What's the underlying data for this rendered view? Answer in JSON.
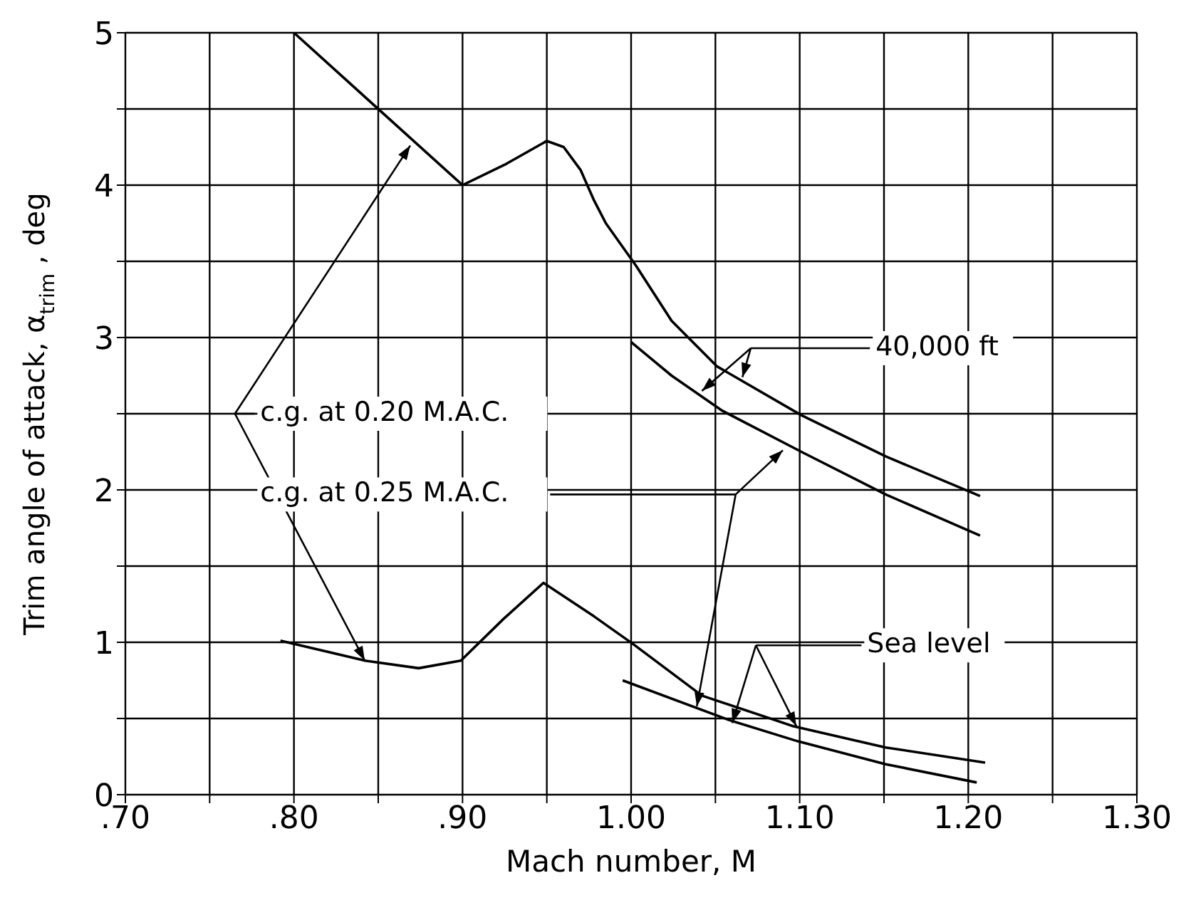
{
  "chart_data": {
    "type": "line",
    "xlabel": "Mach number, M",
    "ylabel": "Trim angle of attack, α$_{trim}$, deg",
    "xlim": [
      0.7,
      1.3
    ],
    "xticks": [
      {
        "value": 0.7,
        "label": ".70"
      },
      {
        "value": 0.75,
        "label": null
      },
      {
        "value": 0.8,
        "label": ".80"
      },
      {
        "value": 0.85,
        "label": null
      },
      {
        "value": 0.9,
        "label": ".90"
      },
      {
        "value": 0.95,
        "label": null
      },
      {
        "value": 1.0,
        "label": "1.00"
      },
      {
        "value": 1.05,
        "label": null
      },
      {
        "value": 1.1,
        "label": "1.10"
      },
      {
        "value": 1.15,
        "label": null
      },
      {
        "value": 1.2,
        "label": "1.20"
      },
      {
        "value": 1.25,
        "label": null
      },
      {
        "value": 1.3,
        "label": "1.30"
      }
    ],
    "ylim": [
      0,
      5
    ],
    "yticks": [
      0,
      {
        "value": 0.5,
        "label": null
      },
      1,
      {
        "value": 1.5,
        "label": null
      },
      2,
      {
        "value": 2.5,
        "label": null
      },
      3,
      {
        "value": 3.5,
        "label": null
      },
      4,
      {
        "value": 4.5,
        "label": null
      },
      5
    ],
    "grid": true,
    "legend": false,
    "marker": "none",
    "line_style": "solid",
    "series": [
      {
        "color": "#000000",
        "x": [
          0.8,
          0.9,
          0.926,
          0.95,
          0.96,
          0.97,
          0.978,
          0.985,
          1.003,
          1.024,
          1.051,
          1.101,
          1.151,
          1.207
        ],
        "values": [
          5.0,
          4.0,
          4.14,
          4.29,
          4.25,
          4.1,
          3.9,
          3.75,
          3.47,
          3.11,
          2.81,
          2.49,
          2.22,
          1.96
        ]
      },
      {
        "color": "#000000",
        "x": [
          1.0,
          1.024,
          1.054,
          1.101,
          1.151,
          1.207
        ],
        "values": [
          2.97,
          2.75,
          2.52,
          2.25,
          1.97,
          1.7
        ]
      },
      {
        "color": "#000000",
        "x": [
          0.792,
          0.842,
          0.874,
          0.899,
          0.924,
          0.948,
          0.978,
          1.001,
          1.042,
          1.096,
          1.151,
          1.21
        ],
        "values": [
          1.01,
          0.88,
          0.83,
          0.88,
          1.15,
          1.39,
          1.17,
          0.99,
          0.65,
          0.45,
          0.31,
          0.21
        ]
      },
      {
        "color": "#000000",
        "x": [
          0.995,
          1.058,
          1.099,
          1.151,
          1.205
        ],
        "values": [
          0.75,
          0.49,
          0.35,
          0.2,
          0.08
        ]
      }
    ],
    "annotations": [
      {
        "text": "c.g. at 0.20 M.A.C.",
        "x": 0.869,
        "y": 4.26
      },
      "c.g. at 0.25 M.A.C.",
      "40,000 ft",
      "Sea level"
    ]
  }
}
